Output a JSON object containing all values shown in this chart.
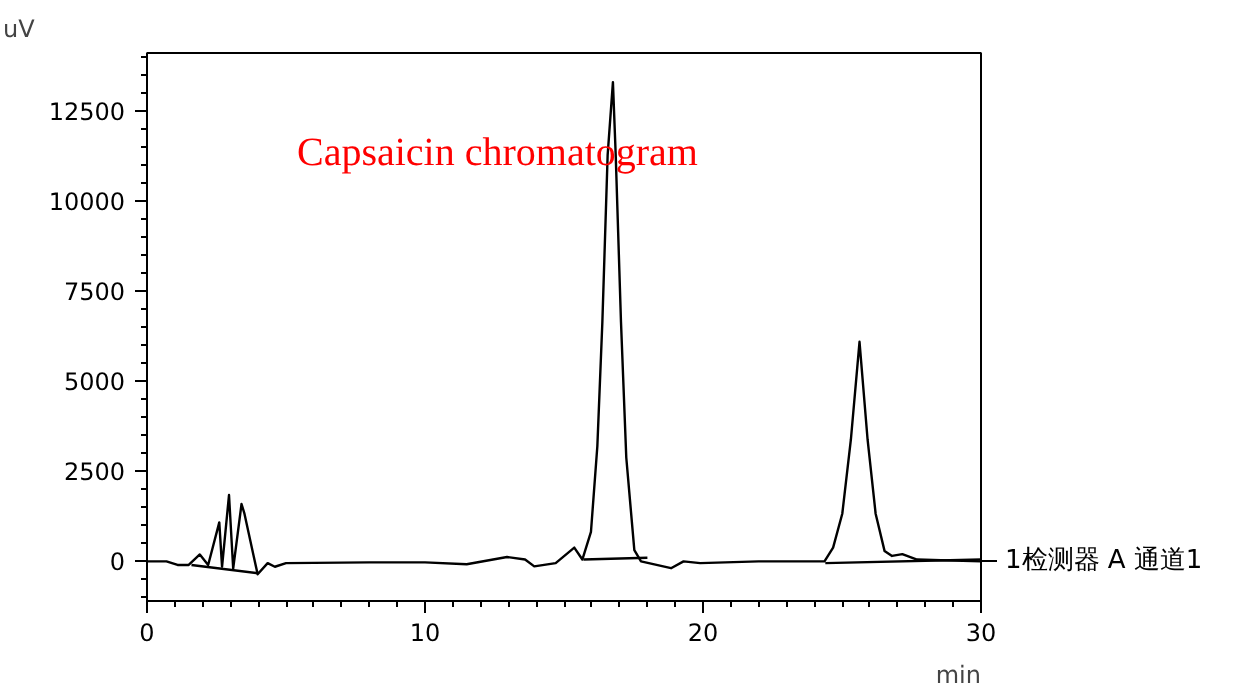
{
  "chart_data": {
    "type": "line",
    "xlabel": "min",
    "ylabel": "uV",
    "annotations": [
      "Capsaicin chromatogram"
    ],
    "xlim": [
      0,
      30
    ],
    "ylim": [
      -1100,
      14100
    ],
    "xticks": [
      0,
      10,
      20,
      30,
      {
        "value": 1,
        "label": null
      },
      {
        "value": 2,
        "label": null
      },
      {
        "value": 3,
        "label": null
      },
      {
        "value": 4,
        "label": null
      },
      {
        "value": 5,
        "label": null
      },
      {
        "value": 6,
        "label": null
      },
      {
        "value": 7,
        "label": null
      },
      {
        "value": 8,
        "label": null
      },
      {
        "value": 9,
        "label": null
      },
      {
        "value": 11,
        "label": null
      },
      {
        "value": 12,
        "label": null
      },
      {
        "value": 13,
        "label": null
      },
      {
        "value": 14,
        "label": null
      },
      {
        "value": 15,
        "label": null
      },
      {
        "value": 16,
        "label": null
      },
      {
        "value": 17,
        "label": null
      },
      {
        "value": 18,
        "label": null
      },
      {
        "value": 19,
        "label": null
      },
      {
        "value": 21,
        "label": null
      },
      {
        "value": 22,
        "label": null
      },
      {
        "value": 23,
        "label": null
      },
      {
        "value": 24,
        "label": null
      },
      {
        "value": 25,
        "label": null
      },
      {
        "value": 26,
        "label": null
      },
      {
        "value": 27,
        "label": null
      },
      {
        "value": 28,
        "label": null
      },
      {
        "value": 29,
        "label": null
      }
    ],
    "yticks": [
      0,
      2500,
      5000,
      7500,
      10000,
      12500,
      {
        "value": -1000,
        "label": null
      },
      {
        "value": -500,
        "label": null
      },
      {
        "value": 500,
        "label": null
      },
      {
        "value": 1000,
        "label": null
      },
      {
        "value": 1500,
        "label": null
      },
      {
        "value": 2000,
        "label": null
      },
      {
        "value": 3000,
        "label": null
      },
      {
        "value": 3500,
        "label": null
      },
      {
        "value": 4000,
        "label": null
      },
      {
        "value": 4500,
        "label": null
      },
      {
        "value": 5500,
        "label": null
      },
      {
        "value": 6000,
        "label": null
      },
      {
        "value": 6500,
        "label": null
      },
      {
        "value": 7000,
        "label": null
      },
      {
        "value": 8000,
        "label": null
      },
      {
        "value": 8500,
        "label": null
      },
      {
        "value": 9000,
        "label": null
      },
      {
        "value": 9500,
        "label": null
      },
      {
        "value": 10500,
        "label": null
      },
      {
        "value": 11000,
        "label": null
      },
      {
        "value": 11500,
        "label": null
      },
      {
        "value": 12000,
        "label": null
      },
      {
        "value": 13000,
        "label": null
      },
      {
        "value": 13500,
        "label": null
      },
      {
        "value": 14000,
        "label": null
      }
    ],
    "grid": false,
    "legend": "right",
    "marker": "none",
    "line_style": "solid",
    "series": [
      {
        "name": "1检测器 A 通道1",
        "color": "#000000",
        "x": [
          0,
          0.7,
          1.1,
          1.5,
          1.9,
          2.2,
          2.6,
          2.7,
          2.95,
          3.1,
          3.4,
          3.5,
          3.98,
          4.34,
          4.6,
          5,
          8,
          10,
          11.5,
          12.95,
          13.6,
          13.93,
          14.7,
          15.37,
          15.66,
          15.97,
          16.2,
          16.38,
          16.57,
          16.76,
          16.86,
          17.05,
          17.24,
          17.53,
          17.77,
          18.85,
          19.3,
          19.9,
          22,
          24.37,
          24.68,
          25.01,
          25.32,
          25.63,
          25.92,
          26.21,
          26.53,
          26.8,
          27.17,
          27.7,
          30
        ],
        "values": [
          0,
          0,
          -100,
          -100,
          190,
          -100,
          1080,
          -150,
          1840,
          -200,
          1590,
          1340,
          -360,
          -50,
          -150,
          -50,
          -30,
          -30,
          -80,
          120,
          50,
          -140,
          -50,
          380,
          50,
          820,
          3200,
          6640,
          11270,
          13290,
          11270,
          6640,
          2880,
          310,
          0,
          -190,
          0,
          -50,
          0,
          0,
          380,
          1320,
          3380,
          6090,
          3380,
          1320,
          290,
          150,
          200,
          50,
          0
        ]
      },
      {
        "color": "#000000",
        "x": [
          1.6,
          4.0,
          null,
          15.7,
          18.0,
          null,
          24.4,
          30
        ],
        "values": [
          -100,
          -330,
          null,
          50,
          100,
          null,
          -50,
          50
        ]
      }
    ]
  }
}
